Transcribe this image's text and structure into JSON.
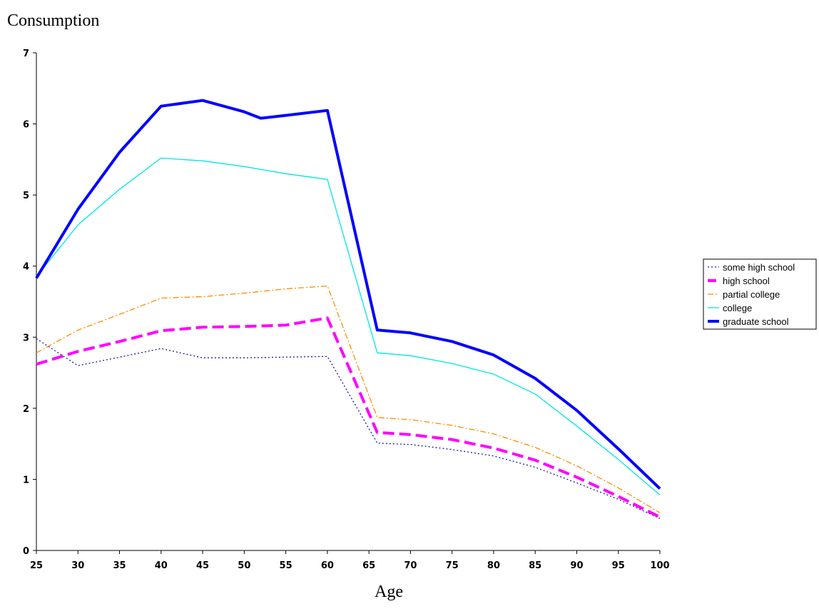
{
  "chart_data": {
    "type": "line",
    "ylabel": "Consumption",
    "xlabel": "Age",
    "ylim": [
      0,
      7
    ],
    "xlim": [
      25,
      100
    ],
    "y_ticks": [
      "0",
      "1",
      "2",
      "3",
      "4",
      "5",
      "6",
      "7"
    ],
    "x_ticks": [
      "25",
      "30",
      "35",
      "40",
      "45",
      "50",
      "55",
      "60",
      "65",
      "70",
      "75",
      "80",
      "85",
      "90",
      "95",
      "100"
    ],
    "legend_position": "right",
    "grid": false,
    "series": [
      {
        "name": "some high school",
        "color": "#1a1aa6",
        "style": "dotted",
        "points": [
          [
            25,
            2.98
          ],
          [
            30,
            2.6
          ],
          [
            35,
            2.72
          ],
          [
            40,
            2.84
          ],
          [
            45,
            2.71
          ],
          [
            50,
            2.71
          ],
          [
            55,
            2.72
          ],
          [
            60,
            2.73
          ],
          [
            66,
            1.51
          ],
          [
            70,
            1.49
          ],
          [
            75,
            1.42
          ],
          [
            80,
            1.33
          ],
          [
            85,
            1.17
          ],
          [
            90,
            0.95
          ],
          [
            95,
            0.72
          ],
          [
            100,
            0.45
          ]
        ]
      },
      {
        "name": "high school",
        "color": "#ff00ff",
        "style": "long-dash",
        "points": [
          [
            25,
            2.62
          ],
          [
            30,
            2.8
          ],
          [
            35,
            2.94
          ],
          [
            40,
            3.09
          ],
          [
            45,
            3.14
          ],
          [
            50,
            3.15
          ],
          [
            55,
            3.17
          ],
          [
            60,
            3.27
          ],
          [
            66,
            1.66
          ],
          [
            70,
            1.63
          ],
          [
            75,
            1.56
          ],
          [
            80,
            1.44
          ],
          [
            85,
            1.27
          ],
          [
            90,
            1.03
          ],
          [
            95,
            0.76
          ],
          [
            100,
            0.47
          ]
        ]
      },
      {
        "name": "partial college",
        "color": "#ff8c00",
        "style": "dash-dot",
        "points": [
          [
            25,
            2.78
          ],
          [
            30,
            3.1
          ],
          [
            35,
            3.32
          ],
          [
            40,
            3.55
          ],
          [
            45,
            3.57
          ],
          [
            50,
            3.62
          ],
          [
            55,
            3.68
          ],
          [
            60,
            3.72
          ],
          [
            66,
            1.87
          ],
          [
            70,
            1.84
          ],
          [
            75,
            1.76
          ],
          [
            80,
            1.64
          ],
          [
            85,
            1.45
          ],
          [
            90,
            1.19
          ],
          [
            95,
            0.88
          ],
          [
            100,
            0.53
          ]
        ]
      },
      {
        "name": "college",
        "color": "#00e5e5",
        "style": "solid-thin",
        "points": [
          [
            25,
            3.85
          ],
          [
            30,
            4.58
          ],
          [
            35,
            5.08
          ],
          [
            40,
            5.52
          ],
          [
            45,
            5.48
          ],
          [
            50,
            5.4
          ],
          [
            55,
            5.3
          ],
          [
            60,
            5.22
          ],
          [
            66,
            2.78
          ],
          [
            70,
            2.74
          ],
          [
            75,
            2.63
          ],
          [
            80,
            2.48
          ],
          [
            85,
            2.2
          ],
          [
            90,
            1.75
          ],
          [
            95,
            1.28
          ],
          [
            100,
            0.78
          ]
        ]
      },
      {
        "name": "graduate school",
        "color": "#0000ff",
        "style": "solid-thick",
        "points": [
          [
            25,
            3.83
          ],
          [
            30,
            4.8
          ],
          [
            35,
            5.6
          ],
          [
            40,
            6.25
          ],
          [
            45,
            6.33
          ],
          [
            50,
            6.17
          ],
          [
            52,
            6.08
          ],
          [
            55,
            6.12
          ],
          [
            60,
            6.19
          ],
          [
            66,
            3.1
          ],
          [
            70,
            3.06
          ],
          [
            75,
            2.94
          ],
          [
            80,
            2.75
          ],
          [
            85,
            2.42
          ],
          [
            90,
            1.97
          ],
          [
            95,
            1.43
          ],
          [
            100,
            0.87
          ]
        ]
      }
    ]
  }
}
